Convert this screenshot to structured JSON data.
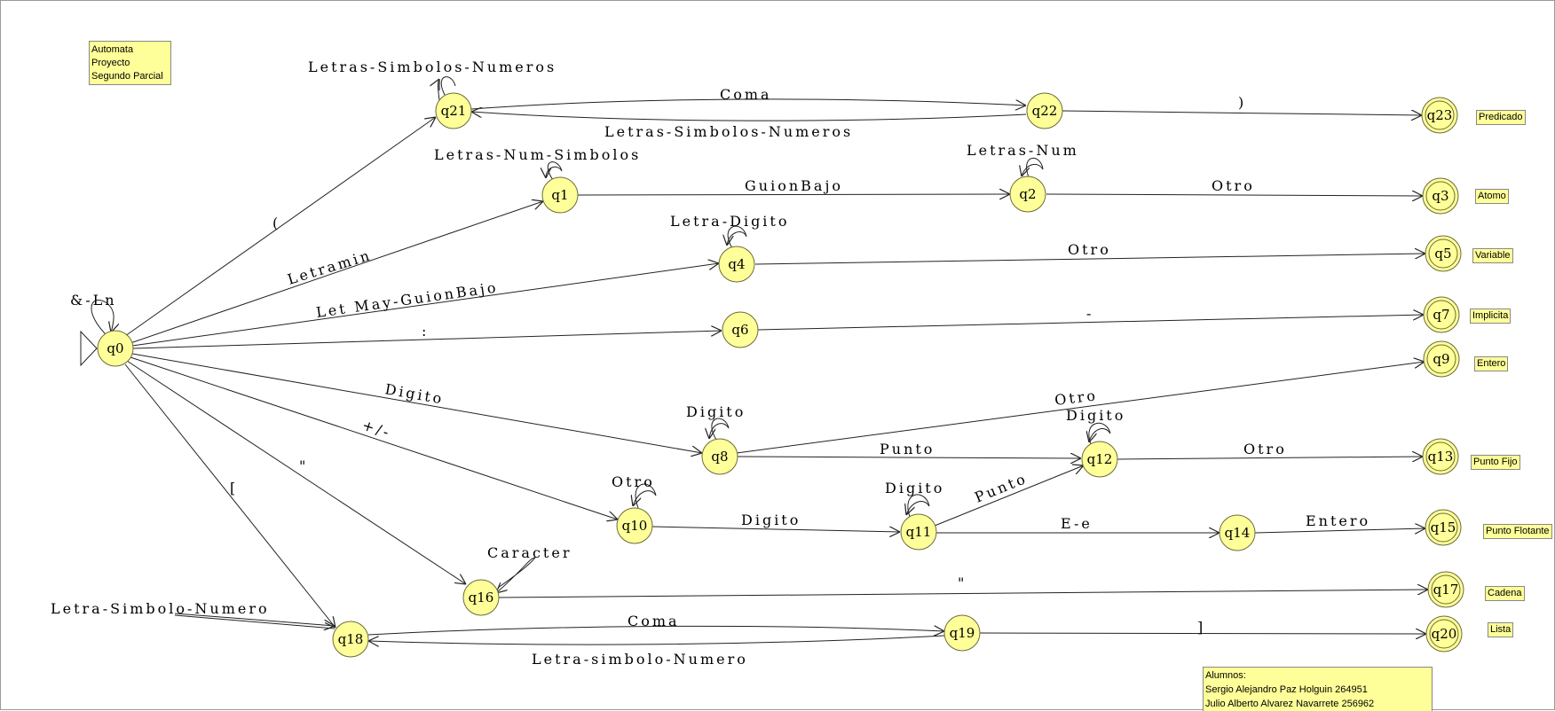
{
  "notes": {
    "title_lines": [
      "Automata",
      "Proyecto",
      "Segundo Parcial"
    ],
    "students_lines": [
      "Alumnos:",
      "Sergio Alejandro Paz Holguin 264951",
      "Julio Alberto Alvarez Navarrete 256962"
    ]
  },
  "states": {
    "q0": "q0",
    "q1": "q1",
    "q2": "q2",
    "q3": "q3",
    "q4": "q4",
    "q5": "q5",
    "q6": "q6",
    "q7": "q7",
    "q8": "q8",
    "q9": "q9",
    "q10": "q10",
    "q11": "q11",
    "q12": "q12",
    "q13": "q13",
    "q14": "q14",
    "q15": "q15",
    "q16": "q16",
    "q17": "q17",
    "q18": "q18",
    "q19": "q19",
    "q20": "q20",
    "q21": "q21",
    "q22": "q22",
    "q23": "q23"
  },
  "edge_labels": {
    "q0_self": "&-Ln",
    "q0_q21": "(",
    "q0_q1": "Letramin",
    "q0_q4": "Let May-GuionBajo",
    "q0_q6": ":",
    "q0_q8": "Digito",
    "q0_q10": "+/-",
    "q0_q16": "\"",
    "q0_q18": "[",
    "q21_self": "Letras-Simbolos-Numeros",
    "q21_q22": "Coma",
    "q22_q21": "Letras-Simbolos-Numeros",
    "q22_q23": ")",
    "q1_self": "Letras-Num-Simbolos",
    "q1_q2": "GuionBajo",
    "q2_self": "Letras-Num",
    "q2_q3": "Otro",
    "q4_self": "Letra-Digito",
    "q4_q5": "Otro",
    "q6_q7": "-",
    "q8_self": "Digito",
    "q8_q9": "Otro",
    "q8_q12": "Punto",
    "q12_self": "Digito",
    "q12_q13": "Otro",
    "q10_self": "Otro",
    "q10_q11": "Digito",
    "q11_self": "Digito",
    "q11_q12": "Punto",
    "q11_q14": "E-e",
    "q14_q15": "Entero",
    "q16_self": "Caracter",
    "q16_q17": "\"",
    "q18_in": "Letra-Simbolo-Numero",
    "q18_q19": "Coma",
    "q19_q18": "Letra-simbolo-Numero",
    "q19_q20": "]"
  },
  "final_tags": {
    "q23": "Predicado",
    "q3": "Atomo",
    "q5": "Variable",
    "q7": "Implicita",
    "q9": "Entero",
    "q13": "Punto Fijo",
    "q15": "Punto Flotante",
    "q17": "Cadena",
    "q20": "Lista"
  }
}
